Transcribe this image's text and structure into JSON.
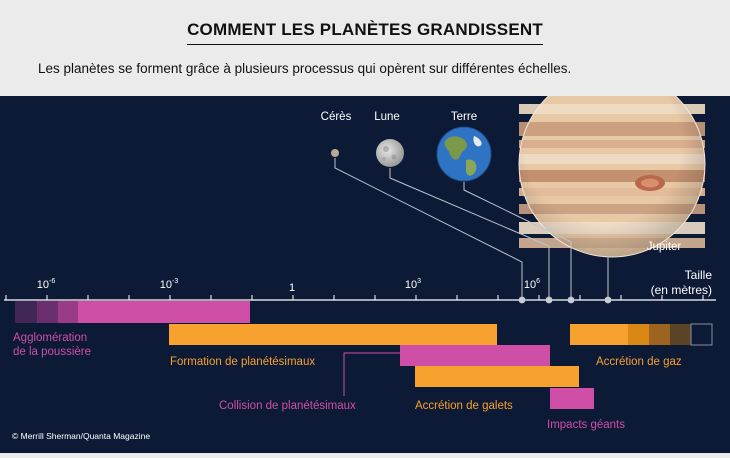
{
  "header": {
    "title": "COMMENT LES PLANÈTES GRANDISSENT",
    "subtitle": "Les planètes se forment grâce à plusieurs processus qui opèrent sur différentes échelles."
  },
  "planets": [
    {
      "name": "Cérès",
      "icon": "ceres-icon"
    },
    {
      "name": "Lune",
      "icon": "moon-icon"
    },
    {
      "name": "Terre",
      "icon": "earth-icon"
    },
    {
      "name": "Jupiter",
      "icon": "jupiter-icon"
    }
  ],
  "axis": {
    "label_line1": "Taille",
    "label_line2": "(en mètres)",
    "ticks": [
      {
        "base": "10",
        "exp": "-6"
      },
      {
        "base": "10",
        "exp": "-3"
      },
      {
        "base": "1",
        "exp": ""
      },
      {
        "base": "10",
        "exp": "3"
      },
      {
        "base": "10",
        "exp": "6"
      }
    ]
  },
  "processes": [
    {
      "label": "Agglomération",
      "label2": "de la poussière"
    },
    {
      "label": "Formation de planétésimaux"
    },
    {
      "label": "Collision de planétésimaux"
    },
    {
      "label": "Accrétion de galets"
    },
    {
      "label": "Impacts géants"
    },
    {
      "label": "Accrétion de gaz"
    }
  ],
  "colors": {
    "background": "#0d1a36",
    "header": "#ebebeb",
    "orange": "#f7a12f",
    "pink": "#cf4fa6"
  },
  "credit": "© Merrill Sherman/Quanta Magazine"
}
